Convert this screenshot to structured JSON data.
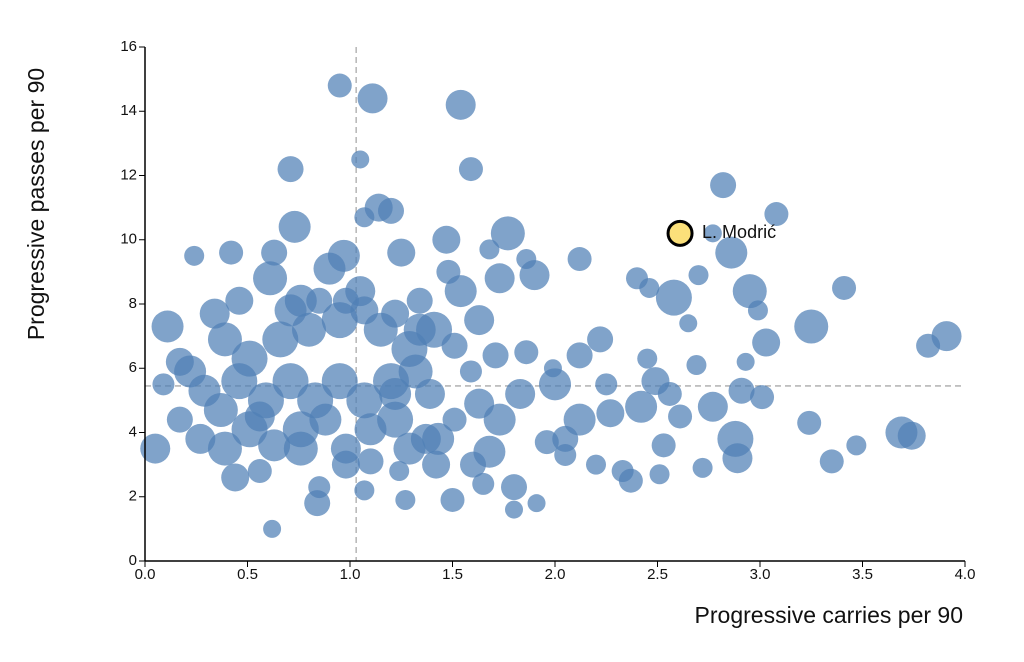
{
  "chart_data": {
    "type": "scatter",
    "y_label": "Progressive passes per 90",
    "x_label": "Progressive carries per 90",
    "color": "#4f7fb5",
    "x": [
      0.95,
      1.11,
      1.54,
      1.05,
      0.71,
      1.59,
      1.14,
      1.2,
      1.07,
      0.73,
      2.82,
      3.08,
      2.77,
      2.86,
      1.47,
      1.77,
      1.25,
      0.97,
      0.42,
      0.24,
      0.63,
      2.12,
      1.86,
      1.9,
      2.4,
      2.7,
      2.58,
      2.95,
      3.41,
      2.46,
      2.65,
      2.99,
      3.25,
      0.11,
      3.91,
      3.82,
      3.03,
      2.22,
      2.69,
      2.93,
      2.12,
      2.45,
      1.99,
      1.86,
      0.09,
      0.05,
      0.62,
      0.84,
      0.85,
      1.07,
      1.27,
      1.5,
      1.8,
      1.8,
      1.91,
      0.44,
      0.56,
      2.51,
      2.37,
      2.33,
      2.72,
      2.89,
      2.88,
      3.35,
      3.47,
      3.24,
      3.69,
      3.74,
      3.01,
      2.91,
      2.77,
      2.61,
      2.56,
      2.42,
      2.49,
      2.25,
      2.27,
      2.12,
      2.05,
      1.96,
      2.05,
      2.2,
      2.0,
      2.53,
      1.68,
      1.6,
      1.65,
      1.42,
      1.24,
      1.43,
      1.73,
      1.83,
      1.63,
      1.71,
      1.59,
      1.63,
      1.54,
      1.73,
      1.68,
      1.48,
      1.34,
      1.41,
      1.29,
      1.15,
      1.05,
      0.9,
      0.76,
      0.61,
      0.46,
      0.34,
      0.39,
      0.51,
      0.66,
      0.8,
      0.95,
      1.07,
      1.22,
      1.34,
      0.22,
      0.29,
      0.37,
      0.46,
      0.59,
      0.71,
      0.83,
      0.95,
      1.07,
      1.2,
      1.32,
      1.39,
      0.17,
      0.27,
      0.39,
      0.51,
      0.63,
      0.76,
      0.76,
      0.88,
      0.98,
      1.1,
      1.22,
      1.29,
      1.37,
      0.98,
      1.1,
      0.56,
      1.22,
      1.51,
      1.51,
      0.17,
      0.71,
      0.85,
      0.98
    ],
    "values": [
      14.8,
      14.4,
      14.2,
      12.5,
      12.2,
      12.2,
      11.0,
      10.9,
      10.7,
      10.4,
      11.7,
      10.8,
      10.2,
      9.6,
      10.0,
      10.2,
      9.6,
      9.5,
      9.6,
      9.5,
      9.6,
      9.4,
      9.4,
      8.9,
      8.8,
      8.9,
      8.2,
      8.4,
      8.5,
      8.5,
      7.4,
      7.8,
      7.3,
      7.3,
      7.0,
      6.7,
      6.8,
      6.9,
      6.1,
      6.2,
      6.4,
      6.3,
      6.0,
      6.5,
      5.5,
      3.5,
      1.0,
      1.8,
      2.3,
      2.2,
      1.9,
      1.9,
      2.3,
      1.6,
      1.8,
      2.6,
      2.8,
      2.7,
      2.5,
      2.8,
      2.9,
      3.2,
      3.8,
      3.1,
      3.6,
      4.3,
      4.0,
      3.9,
      5.1,
      5.3,
      4.8,
      4.5,
      5.2,
      4.8,
      5.6,
      5.5,
      4.6,
      4.4,
      3.8,
      3.7,
      3.3,
      3.0,
      5.5,
      3.6,
      3.4,
      3.0,
      2.4,
      3.0,
      2.8,
      3.8,
      4.4,
      5.2,
      4.9,
      6.4,
      5.9,
      7.5,
      8.4,
      8.8,
      9.7,
      9.0,
      8.1,
      7.2,
      6.6,
      7.2,
      8.4,
      9.1,
      8.1,
      8.8,
      8.1,
      7.7,
      6.9,
      6.3,
      6.9,
      7.2,
      7.5,
      7.8,
      7.7,
      7.2,
      5.9,
      5.3,
      4.7,
      5.6,
      5.0,
      5.6,
      5.0,
      5.6,
      5.0,
      5.6,
      5.9,
      5.2,
      4.4,
      3.8,
      3.5,
      4.1,
      3.6,
      4.1,
      3.5,
      4.4,
      3.5,
      4.1,
      4.4,
      3.5,
      3.8,
      3.0,
      3.1,
      4.5,
      5.2,
      4.4,
      6.7,
      6.2,
      7.8,
      8.1,
      8.1
    ],
    "sizes": [
      12,
      15,
      15,
      9,
      13,
      12,
      14,
      13,
      10,
      16,
      13,
      12,
      9,
      16,
      14,
      17,
      14,
      16,
      12,
      10,
      13,
      12,
      10,
      15,
      11,
      10,
      18,
      17,
      12,
      10,
      9,
      10,
      17,
      16,
      15,
      12,
      14,
      13,
      10,
      9,
      13,
      10,
      9,
      12,
      11,
      15,
      9,
      13,
      11,
      10,
      10,
      12,
      13,
      9,
      9,
      14,
      12,
      10,
      12,
      11,
      10,
      15,
      18,
      12,
      10,
      12,
      16,
      14,
      12,
      13,
      15,
      12,
      12,
      16,
      14,
      11,
      14,
      16,
      13,
      12,
      11,
      10,
      16,
      12,
      16,
      13,
      11,
      14,
      10,
      16,
      16,
      15,
      15,
      13,
      11,
      15,
      16,
      15,
      10,
      12,
      13,
      18,
      18,
      17,
      15,
      16,
      16,
      17,
      14,
      15,
      17,
      18,
      18,
      17,
      18,
      14,
      14,
      16,
      16,
      16,
      17,
      18,
      18,
      18,
      18,
      18,
      18,
      18,
      17,
      15,
      13,
      15,
      17,
      18,
      16,
      18,
      17,
      16,
      15,
      16,
      18,
      16,
      15,
      14,
      13,
      15,
      16,
      12,
      13,
      14,
      16,
      13,
      13
    ],
    "highlight": {
      "label": "L. Modrić",
      "x": 2.61,
      "y": 10.2,
      "size": 12,
      "color": "#fbe07a"
    },
    "reference_lines": {
      "x": 1.03,
      "y": 5.45
    },
    "xlim": [
      0,
      4
    ],
    "ylim": [
      0,
      16
    ],
    "xticks": [
      {
        "value": 0,
        "label": "0.0"
      },
      0.5,
      {
        "value": 1,
        "label": "1.0"
      },
      1.5,
      {
        "value": 2,
        "label": "2.0"
      },
      2.5,
      {
        "value": 3,
        "label": "3.0"
      },
      3.5,
      {
        "value": 4,
        "label": "4.0"
      }
    ],
    "yticks": [
      0,
      2,
      4,
      6,
      8,
      10,
      12,
      14,
      16
    ]
  }
}
